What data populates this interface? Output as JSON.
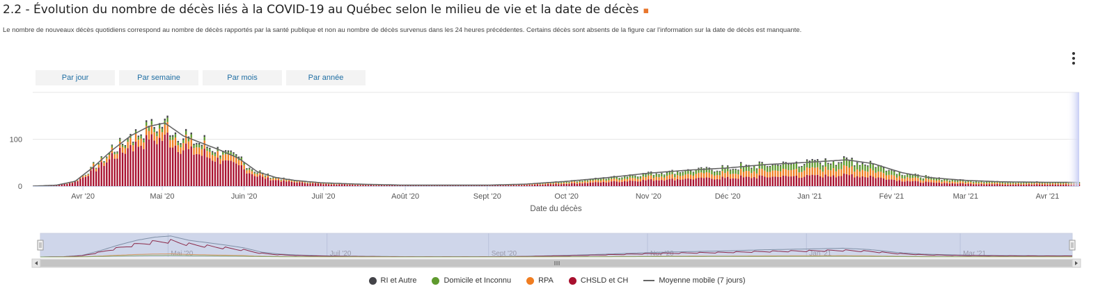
{
  "title": "2.2 - Évolution du nombre de décès liés à la COVID-19 au Québec selon le milieu de vie et la date de décès",
  "subtitle": "Le nombre de nouveaux décès quotidiens correspond au nombre de décès rapportés par la santé publique et non au nombre de décès survenus dans les 24 heures précédentes. Certains décès sont absents de la figure car l'information sur la date de décès est manquante.",
  "range_buttons": [
    "Par jour",
    "Par semaine",
    "Par mois",
    "Par année"
  ],
  "menu_icon": "hamburger-menu-icon",
  "legend": [
    {
      "label": "RI et Autre",
      "color": "#434348",
      "shape": "dot"
    },
    {
      "label": "Domicile et Inconnu",
      "color": "#5f9a2e",
      "shape": "dot"
    },
    {
      "label": "RPA",
      "color": "#f07d21",
      "shape": "dot"
    },
    {
      "label": "CHSLD et CH",
      "color": "#a8102e",
      "shape": "dot"
    },
    {
      "label": "Moyenne mobile (7 jours)",
      "color": "#666666",
      "shape": "line"
    }
  ],
  "chart_data": {
    "type": "bar",
    "stacked": true,
    "xlabel": "Date du décès",
    "ylabel": "",
    "ylim": [
      0,
      200
    ],
    "yticks": [
      0,
      100
    ],
    "x_range": [
      "2020-03-13",
      "2021-04-13"
    ],
    "x_ticks": [
      {
        "date": "2020-04-01",
        "label": "Avr '20"
      },
      {
        "date": "2020-05-01",
        "label": "Mai '20"
      },
      {
        "date": "2020-06-01",
        "label": "Juin '20"
      },
      {
        "date": "2020-07-01",
        "label": "Juil '20"
      },
      {
        "date": "2020-08-01",
        "label": "Août '20"
      },
      {
        "date": "2020-09-01",
        "label": "Sept '20"
      },
      {
        "date": "2020-10-01",
        "label": "Oct '20"
      },
      {
        "date": "2020-11-01",
        "label": "Nov '20"
      },
      {
        "date": "2020-12-01",
        "label": "Déc '20"
      },
      {
        "date": "2021-01-01",
        "label": "Jan '21"
      },
      {
        "date": "2021-02-01",
        "label": "Fév '21"
      },
      {
        "date": "2021-03-01",
        "label": "Mar '21"
      },
      {
        "date": "2021-04-01",
        "label": "Avr '21"
      }
    ],
    "total_keypoints": [
      [
        "2020-03-13",
        0
      ],
      [
        "2020-03-22",
        2
      ],
      [
        "2020-03-29",
        10
      ],
      [
        "2020-04-05",
        40
      ],
      [
        "2020-04-12",
        75
      ],
      [
        "2020-04-19",
        105
      ],
      [
        "2020-04-26",
        125
      ],
      [
        "2020-05-02",
        132
      ],
      [
        "2020-05-09",
        105
      ],
      [
        "2020-05-16",
        90
      ],
      [
        "2020-05-23",
        75
      ],
      [
        "2020-05-30",
        58
      ],
      [
        "2020-06-06",
        30
      ],
      [
        "2020-06-13",
        18
      ],
      [
        "2020-06-20",
        12
      ],
      [
        "2020-06-30",
        7
      ],
      [
        "2020-07-15",
        4
      ],
      [
        "2020-08-01",
        2
      ],
      [
        "2020-09-01",
        2
      ],
      [
        "2020-09-15",
        4
      ],
      [
        "2020-10-01",
        10
      ],
      [
        "2020-10-15",
        17
      ],
      [
        "2020-11-01",
        27
      ],
      [
        "2020-11-15",
        33
      ],
      [
        "2020-12-01",
        38
      ],
      [
        "2020-12-15",
        45
      ],
      [
        "2021-01-01",
        50
      ],
      [
        "2021-01-15",
        55
      ],
      [
        "2021-01-25",
        47
      ],
      [
        "2021-02-05",
        28
      ],
      [
        "2021-02-15",
        18
      ],
      [
        "2021-03-01",
        12
      ],
      [
        "2021-03-15",
        9
      ],
      [
        "2021-04-01",
        8
      ],
      [
        "2021-04-13",
        8
      ]
    ],
    "category_share_keypoints": [
      {
        "date": "2020-04-01",
        "CHSLD et CH": 0.82,
        "RPA": 0.12,
        "Domicile et Inconnu": 0.04,
        "RI et Autre": 0.02
      },
      {
        "date": "2020-07-01",
        "CHSLD et CH": 0.65,
        "RPA": 0.2,
        "Domicile et Inconnu": 0.1,
        "RI et Autre": 0.05
      },
      {
        "date": "2020-10-01",
        "CHSLD et CH": 0.5,
        "RPA": 0.25,
        "Domicile et Inconnu": 0.2,
        "RI et Autre": 0.05
      },
      {
        "date": "2021-01-01",
        "CHSLD et CH": 0.42,
        "RPA": 0.28,
        "Domicile et Inconnu": 0.25,
        "RI et Autre": 0.05
      },
      {
        "date": "2021-04-13",
        "CHSLD et CH": 0.4,
        "RPA": 0.28,
        "Domicile et Inconnu": 0.27,
        "RI et Autre": 0.05
      }
    ],
    "series": [
      {
        "name": "CHSLD et CH",
        "color": "#a8102e"
      },
      {
        "name": "RPA",
        "color": "#f07d21"
      },
      {
        "name": "Domicile et Inconnu",
        "color": "#5f9a2e"
      },
      {
        "name": "RI et Autre",
        "color": "#434348"
      },
      {
        "name": "Moyenne mobile (7 jours)",
        "color": "#666666",
        "type": "line"
      }
    ],
    "navigator": {
      "x_labels": [
        "Mai '20",
        "Juil '20",
        "Sept '20",
        "Nov '20",
        "Jan '21",
        "Mar '21"
      ],
      "series_colors": [
        "#7f8fa6",
        "#8b2a4a",
        "#d99b6a",
        "#8aa86a"
      ]
    },
    "grid": true
  }
}
